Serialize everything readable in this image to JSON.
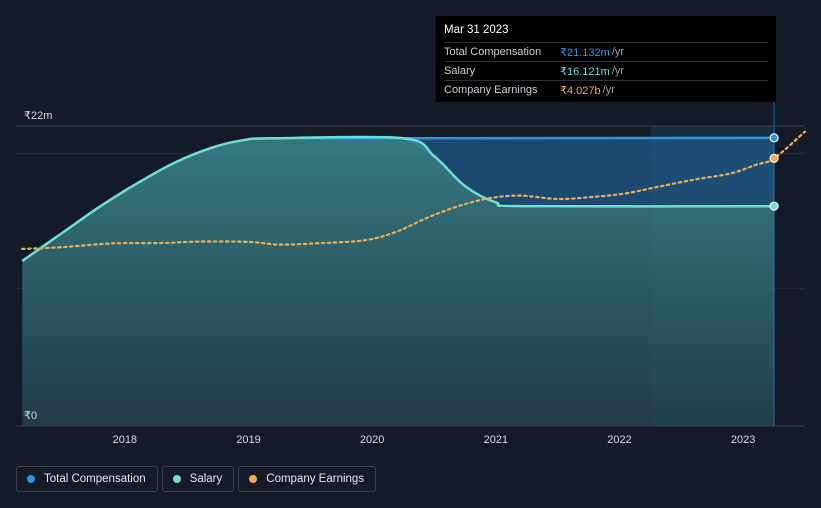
{
  "chart_data": {
    "type": "line",
    "y_axis_labels": {
      "top": "₹22m",
      "bottom": "₹0"
    },
    "ylim": [
      0,
      22
    ],
    "x_ticks": [
      "2018",
      "2019",
      "2020",
      "2021",
      "2022",
      "2023"
    ],
    "xlim": [
      2017.12,
      2023.5
    ],
    "series": [
      {
        "name": "Total Compensation",
        "unit": "₹m",
        "color": "#2b95e8",
        "x": [
          2019.2,
          2020.25,
          2023.25
        ],
        "values": [
          21.1,
          21.1,
          21.132
        ]
      },
      {
        "name": "Salary",
        "unit": "₹m",
        "color": "#6ce0d4",
        "x": [
          2017.17,
          2017.5,
          2017.8,
          2018.1,
          2018.4,
          2018.7,
          2018.95,
          2019.2,
          2020.25,
          2020.5,
          2020.75,
          2021.0,
          2021.25,
          2023.25
        ],
        "values": [
          12.1,
          14.2,
          16.1,
          17.8,
          19.3,
          20.4,
          20.95,
          21.1,
          21.1,
          19.8,
          17.6,
          16.4,
          16.121,
          16.121
        ]
      },
      {
        "name": "Company Earnings",
        "unit": "₹b",
        "color": "#eeac57",
        "scale_note": "plotted on secondary scale",
        "x": [
          2017.17,
          2017.5,
          2017.9,
          2018.3,
          2018.6,
          2019.0,
          2019.25,
          2019.6,
          2019.95,
          2020.2,
          2020.45,
          2020.7,
          2020.95,
          2021.2,
          2021.5,
          2021.8,
          2022.05,
          2022.3,
          2022.6,
          2022.9,
          2023.1,
          2023.25,
          2023.5
        ],
        "values": [
          1.58,
          1.63,
          1.73,
          1.74,
          1.78,
          1.77,
          1.7,
          1.74,
          1.82,
          2.05,
          2.43,
          2.74,
          2.95,
          3.02,
          2.93,
          2.99,
          3.08,
          3.25,
          3.45,
          3.62,
          3.85,
          4.027,
          4.75
        ]
      }
    ],
    "highlight_region": {
      "from": 2022.25,
      "to": 2023.25
    },
    "tooltip": {
      "date": "Mar 31 2023",
      "rows": [
        {
          "label": "Total Compensation",
          "value": "₹21.132m",
          "unit": "/yr",
          "color": "#2b95e8"
        },
        {
          "label": "Salary",
          "value": "₹16.121m",
          "unit": "/yr",
          "color": "#6ce0d4"
        },
        {
          "label": "Company Earnings",
          "value": "₹4.027b",
          "unit": "/yr",
          "color": "#eeac57"
        }
      ]
    },
    "grid": true,
    "legend_position": "bottom-left"
  },
  "legend": [
    {
      "label": "Total Compensation",
      "color": "#2b95e8"
    },
    {
      "label": "Salary",
      "color": "#6ce0d4"
    },
    {
      "label": "Company Earnings",
      "color": "#eeac57"
    }
  ]
}
